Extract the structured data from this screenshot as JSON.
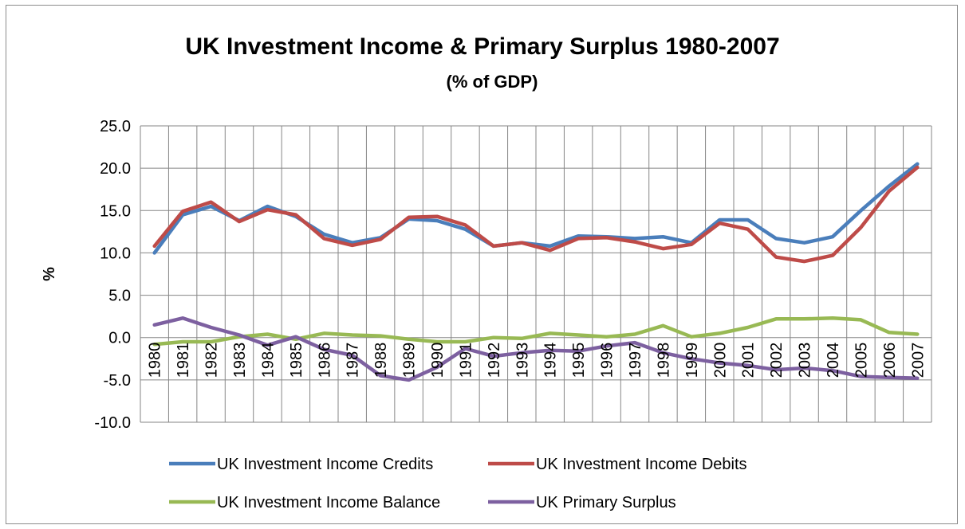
{
  "chart_data": {
    "type": "line",
    "title": "UK  Investment Income & Primary Surplus 1980-2007",
    "subtitle": "(% of GDP)",
    "xlabel": "",
    "ylabel": "%",
    "ylim": [
      -10,
      25
    ],
    "ytick_step": 5,
    "yticks": [
      "25.0",
      "20.0",
      "15.0",
      "10.0",
      "5.0",
      "0.0",
      "-5.0",
      "-10.0"
    ],
    "grid": true,
    "legend_position": "bottom",
    "categories": [
      "1980",
      "1981",
      "1982",
      "1983",
      "1984",
      "1985",
      "1986",
      "1987",
      "1988",
      "1989",
      "1990",
      "1991",
      "1992",
      "1993",
      "1994",
      "1995",
      "1996",
      "1997",
      "1998",
      "1999",
      "2000",
      "2001",
      "2002",
      "2003",
      "2004",
      "2005",
      "2006",
      "2007"
    ],
    "series": [
      {
        "name": "UK Investment Income Credits",
        "color": "#4a7ebb",
        "values": [
          10.0,
          14.5,
          15.5,
          13.8,
          15.5,
          14.3,
          12.2,
          11.2,
          11.8,
          14.0,
          13.8,
          12.8,
          10.8,
          11.2,
          10.8,
          12.0,
          11.9,
          11.7,
          11.9,
          11.2,
          13.9,
          13.9,
          11.7,
          11.2,
          11.9,
          15.0,
          17.9,
          20.5
        ]
      },
      {
        "name": "UK Investment Income Debits",
        "color": "#be4b48",
        "values": [
          10.8,
          14.9,
          16.0,
          13.7,
          15.1,
          14.5,
          11.7,
          10.9,
          11.6,
          14.2,
          14.3,
          13.3,
          10.8,
          11.2,
          10.3,
          11.7,
          11.8,
          11.3,
          10.5,
          11.0,
          13.5,
          12.8,
          9.5,
          9.0,
          9.7,
          13.0,
          17.3,
          20.1
        ]
      },
      {
        "name": "UK Investment Income Balance",
        "color": "#98b954",
        "values": [
          -0.8,
          -0.5,
          -0.5,
          0.1,
          0.4,
          -0.2,
          0.5,
          0.3,
          0.2,
          -0.2,
          -0.5,
          -0.5,
          0.0,
          -0.1,
          0.5,
          0.3,
          0.1,
          0.4,
          1.4,
          0.1,
          0.5,
          1.2,
          2.2,
          2.2,
          2.3,
          2.1,
          0.6,
          0.4
        ]
      },
      {
        "name": "UK Primary Surplus",
        "color": "#7d60a0",
        "values": [
          1.5,
          2.3,
          1.2,
          0.3,
          -0.9,
          0.1,
          -1.4,
          -2.1,
          -4.5,
          -5.0,
          -3.5,
          -1.3,
          -2.2,
          -1.8,
          -1.5,
          -1.6,
          -1.0,
          -0.6,
          -1.8,
          -2.5,
          -3.0,
          -3.3,
          -3.8,
          -3.6,
          -3.9,
          -4.6,
          -4.7,
          -4.8
        ]
      }
    ]
  }
}
